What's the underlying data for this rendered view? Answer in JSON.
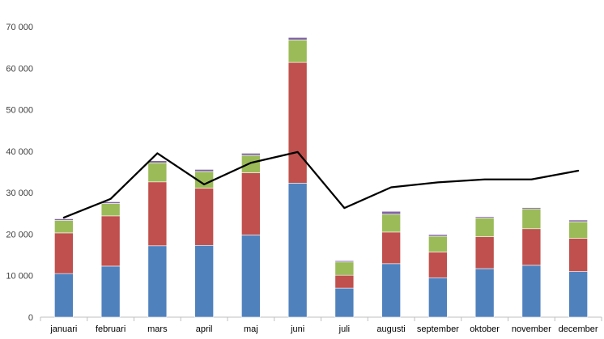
{
  "chart_data": {
    "type": "bar",
    "stacked": true,
    "categories": [
      "januari",
      "februari",
      "mars",
      "april",
      "maj",
      "juni",
      "juli",
      "augusti",
      "september",
      "oktober",
      "november",
      "december"
    ],
    "series": [
      {
        "color": "#4F81BD",
        "values": [
          10500,
          12300,
          17200,
          17300,
          19800,
          32300,
          7000,
          12900,
          9500,
          11700,
          12500,
          11000
        ]
      },
      {
        "color": "#C0504D",
        "values": [
          9800,
          12100,
          15400,
          13800,
          15000,
          29100,
          3100,
          7600,
          6200,
          7700,
          8800,
          8000
        ]
      },
      {
        "color": "#9BBB59",
        "values": [
          3000,
          3000,
          4600,
          4000,
          4200,
          5400,
          3200,
          4300,
          3800,
          4500,
          4800,
          4000
        ]
      },
      {
        "color": "#8064A2",
        "values": [
          400,
          400,
          500,
          500,
          500,
          600,
          300,
          700,
          400,
          300,
          300,
          400
        ]
      }
    ],
    "line": {
      "color": "#000000",
      "values": [
        24000,
        28500,
        39500,
        32000,
        37200,
        39800,
        26300,
        31300,
        32500,
        33200,
        33200,
        35300
      ]
    },
    "ylim": [
      0,
      70000
    ],
    "yticks": [
      0,
      10000,
      20000,
      30000,
      40000,
      50000,
      60000,
      70000
    ],
    "ytick_labels": [
      "0",
      "10 000",
      "20 000",
      "30 000",
      "40 000",
      "50 000",
      "60 000",
      "70 000"
    ],
    "grid": false,
    "title": "",
    "xlabel": "",
    "ylabel": ""
  }
}
